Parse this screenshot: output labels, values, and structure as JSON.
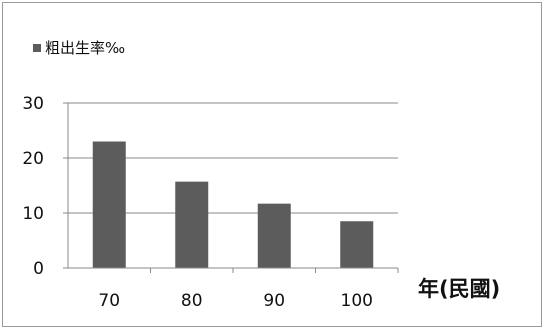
{
  "chart_data": {
    "type": "bar",
    "categories": [
      "70",
      "80",
      "90",
      "100"
    ],
    "series": [
      {
        "name": "粗出生率‰",
        "values": [
          23,
          15.7,
          11.7,
          8.5
        ]
      }
    ],
    "xlabel": "年(民國)",
    "ylabel": "",
    "ylim": [
      0,
      30
    ],
    "yticks": [
      "0",
      "10",
      "20",
      "30"
    ],
    "grid": true,
    "legend": "top-left",
    "bar_color": "#5c5c5c",
    "grid_color": "#8a8a8a",
    "border_color": "#9a9a9a"
  }
}
